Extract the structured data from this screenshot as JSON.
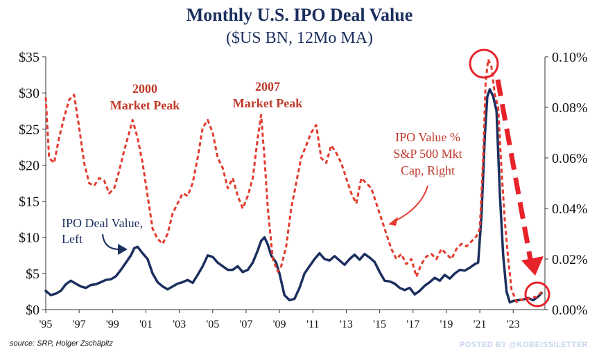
{
  "header": {
    "title": "Monthly U.S. IPO Deal Value",
    "subtitle": "($US BN, 12Mo MA)"
  },
  "annotations": {
    "peak_2000_line1": "2000",
    "peak_2000_line2": "Market Peak",
    "peak_2007_line1": "2007",
    "peak_2007_line2": "Market Peak",
    "ipo_pct_line1": "IPO Value %",
    "ipo_pct_line2": "S&P 500 Mkt",
    "ipo_pct_line3": "Cap, Right",
    "ipo_value_line1": "IPO Deal Value,",
    "ipo_value_line2": "Left"
  },
  "footer": {
    "source": "source: SRP, Holger Zschäpitz",
    "posted_by": "POSTED BY @KOBEISSILETTER"
  },
  "colors": {
    "navy": "#1b2f5e",
    "red": "#e23b2e"
  },
  "chart_data": {
    "type": "line",
    "title": "Monthly U.S. IPO Deal Value",
    "subtitle": "($US BN, 12Mo MA)",
    "x_ticks": [
      "'95",
      "'97",
      "'99",
      "'01",
      "'03",
      "'05",
      "'07",
      "'09",
      "'11",
      "'13",
      "'15",
      "'17",
      "'19",
      "'21",
      "'23"
    ],
    "x_range": [
      1995,
      2024.9
    ],
    "y_left": {
      "ticks": [
        "$0",
        "$5",
        "$10",
        "$15",
        "$20",
        "$25",
        "$30",
        "$35"
      ],
      "range": [
        0,
        35
      ]
    },
    "y_right": {
      "ticks": [
        "0.00%",
        "0.02%",
        "0.04%",
        "0.06%",
        "0.08%",
        "0.10%"
      ],
      "range": [
        0,
        0.1
      ]
    },
    "grid": false,
    "series": [
      {
        "name": "IPO Deal Value, Left",
        "axis": "left",
        "style": "solid",
        "color": "#1b2f5e",
        "x": [
          1995.0,
          1995.3,
          1995.6,
          1995.9,
          1996.2,
          1996.5,
          1996.8,
          1997.1,
          1997.4,
          1997.7,
          1998.0,
          1998.3,
          1998.6,
          1998.9,
          1999.2,
          1999.5,
          1999.8,
          2000.1,
          2000.3,
          2000.5,
          2000.8,
          2001.1,
          2001.4,
          2001.7,
          2002.0,
          2002.3,
          2002.6,
          2002.9,
          2003.2,
          2003.5,
          2003.8,
          2004.1,
          2004.4,
          2004.7,
          2005.0,
          2005.3,
          2005.6,
          2005.9,
          2006.2,
          2006.5,
          2006.8,
          2007.1,
          2007.4,
          2007.7,
          2007.9,
          2008.1,
          2008.3,
          2008.5,
          2008.8,
          2009.0,
          2009.3,
          2009.6,
          2009.9,
          2010.2,
          2010.5,
          2010.8,
          2011.1,
          2011.4,
          2011.7,
          2012.0,
          2012.3,
          2012.6,
          2012.9,
          2013.2,
          2013.5,
          2013.8,
          2014.1,
          2014.4,
          2014.7,
          2015.0,
          2015.3,
          2015.6,
          2015.9,
          2016.2,
          2016.5,
          2016.8,
          2017.1,
          2017.4,
          2017.7,
          2018.0,
          2018.3,
          2018.6,
          2018.9,
          2019.2,
          2019.5,
          2019.8,
          2020.1,
          2020.4,
          2020.7,
          2020.9,
          2021.1,
          2021.3,
          2021.45,
          2021.6,
          2021.8,
          2022.0,
          2022.2,
          2022.4,
          2022.6,
          2022.8,
          2023.0,
          2023.3,
          2023.6,
          2023.9,
          2024.2,
          2024.5,
          2024.7
        ],
        "values": [
          2.6,
          2.0,
          2.2,
          2.6,
          3.5,
          4.0,
          3.6,
          3.2,
          3.0,
          3.4,
          3.5,
          3.8,
          4.1,
          4.2,
          4.6,
          5.5,
          6.5,
          7.5,
          8.5,
          8.7,
          7.8,
          7.0,
          5.0,
          3.8,
          3.2,
          2.8,
          3.2,
          3.6,
          3.8,
          4.1,
          3.7,
          4.8,
          6.0,
          7.5,
          7.3,
          6.5,
          6.0,
          5.5,
          5.5,
          6.0,
          5.2,
          5.5,
          6.5,
          8.2,
          9.5,
          10.0,
          9.0,
          7.5,
          6.5,
          5.0,
          2.0,
          1.3,
          1.5,
          3.0,
          5.0,
          6.0,
          7.0,
          7.8,
          7.0,
          6.8,
          7.4,
          6.8,
          6.2,
          7.0,
          7.6,
          6.9,
          7.7,
          7.2,
          6.6,
          5.2,
          4.0,
          3.9,
          3.6,
          3.0,
          2.7,
          3.0,
          2.1,
          2.6,
          3.3,
          3.8,
          4.4,
          4.0,
          4.8,
          4.3,
          5.0,
          5.5,
          5.4,
          5.8,
          6.3,
          6.5,
          13.0,
          24.0,
          29.5,
          30.5,
          29.5,
          27.5,
          16.0,
          7.5,
          2.5,
          1.0,
          1.2,
          1.3,
          1.4,
          1.6,
          1.3,
          1.8,
          2.3
        ]
      },
      {
        "name": "IPO Value % S&P 500 Mkt Cap, Right",
        "axis": "right",
        "style": "dashed",
        "color": "#e23b2e",
        "x": [
          1995.0,
          1995.2,
          1995.5,
          1995.8,
          1996.1,
          1996.4,
          1996.7,
          1997.0,
          1997.3,
          1997.6,
          1997.9,
          1998.2,
          1998.5,
          1998.8,
          1999.1,
          1999.4,
          1999.7,
          2000.0,
          2000.2,
          2000.5,
          2000.8,
          2001.1,
          2001.4,
          2001.7,
          2002.0,
          2002.3,
          2002.6,
          2002.9,
          2003.2,
          2003.5,
          2003.8,
          2004.1,
          2004.4,
          2004.7,
          2005.0,
          2005.3,
          2005.6,
          2005.9,
          2006.2,
          2006.5,
          2006.8,
          2007.1,
          2007.4,
          2007.7,
          2007.9,
          2008.1,
          2008.3,
          2008.6,
          2008.9,
          2009.1,
          2009.4,
          2009.7,
          2010.0,
          2010.3,
          2010.6,
          2010.9,
          2011.2,
          2011.5,
          2011.8,
          2012.1,
          2012.4,
          2012.7,
          2013.0,
          2013.3,
          2013.6,
          2013.9,
          2014.2,
          2014.5,
          2014.8,
          2015.1,
          2015.4,
          2015.7,
          2016.0,
          2016.3,
          2016.6,
          2016.9,
          2017.2,
          2017.5,
          2017.8,
          2018.1,
          2018.4,
          2018.7,
          2019.0,
          2019.3,
          2019.6,
          2019.9,
          2020.2,
          2020.5,
          2020.8,
          2021.0,
          2021.2,
          2021.35,
          2021.5,
          2021.7,
          2021.9,
          2022.1,
          2022.3,
          2022.5,
          2022.7,
          2022.9,
          2023.2,
          2023.5,
          2023.8,
          2024.1,
          2024.4,
          2024.7
        ],
        "values": [
          0.084,
          0.06,
          0.058,
          0.068,
          0.076,
          0.083,
          0.085,
          0.072,
          0.058,
          0.05,
          0.049,
          0.052,
          0.051,
          0.046,
          0.048,
          0.055,
          0.063,
          0.07,
          0.075,
          0.068,
          0.058,
          0.045,
          0.032,
          0.028,
          0.026,
          0.03,
          0.038,
          0.042,
          0.046,
          0.045,
          0.05,
          0.06,
          0.072,
          0.075,
          0.07,
          0.06,
          0.056,
          0.048,
          0.052,
          0.045,
          0.04,
          0.045,
          0.052,
          0.068,
          0.077,
          0.06,
          0.04,
          0.02,
          0.015,
          0.017,
          0.025,
          0.04,
          0.05,
          0.06,
          0.065,
          0.07,
          0.073,
          0.06,
          0.058,
          0.065,
          0.062,
          0.058,
          0.052,
          0.046,
          0.042,
          0.052,
          0.05,
          0.048,
          0.042,
          0.036,
          0.03,
          0.024,
          0.02,
          0.022,
          0.018,
          0.02,
          0.013,
          0.018,
          0.021,
          0.022,
          0.02,
          0.024,
          0.022,
          0.02,
          0.024,
          0.026,
          0.025,
          0.027,
          0.029,
          0.032,
          0.06,
          0.09,
          0.099,
          0.096,
          0.085,
          0.08,
          0.055,
          0.035,
          0.02,
          0.008,
          0.003,
          0.004,
          0.004,
          0.005,
          0.005,
          0.007
        ]
      }
    ]
  }
}
